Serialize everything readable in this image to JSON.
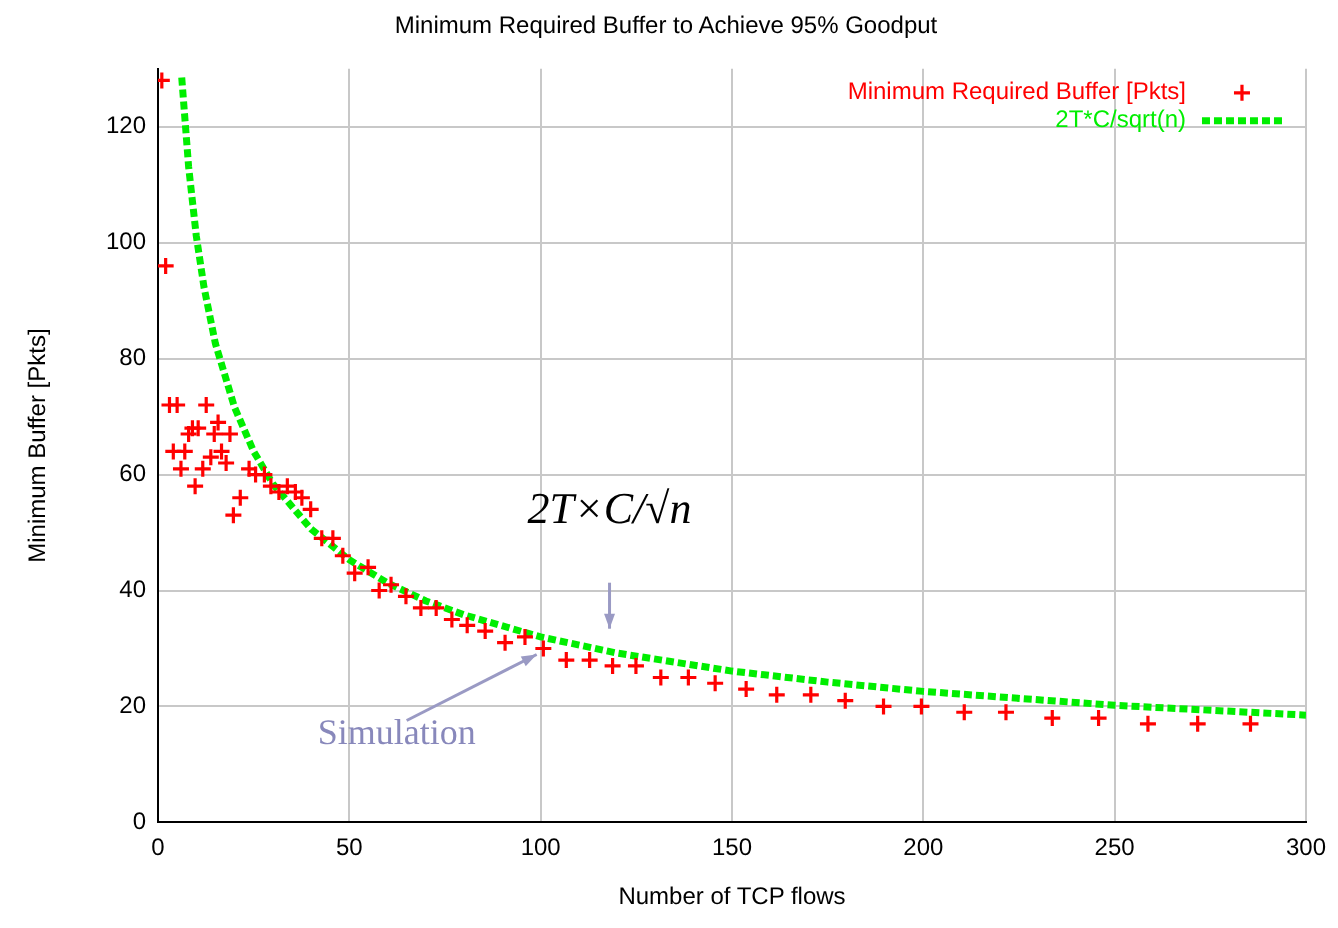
{
  "chart_data": {
    "type": "scatter",
    "title": "Minimum Required Buffer to Achieve 95% Goodput",
    "xlabel": "Number of TCP flows",
    "ylabel": "Minimum Buffer [Pkts]",
    "xlim": [
      0,
      300
    ],
    "xticks": [
      0,
      50,
      100,
      150,
      200,
      250,
      300
    ],
    "ylim": [
      0,
      130
    ],
    "yticks": [
      0,
      20,
      40,
      60,
      80,
      100,
      120
    ],
    "grid": true,
    "legend": "top right",
    "series": [
      {
        "name": "Minimum Required Buffer [Pkts]",
        "type": "scatter",
        "marker": "cross",
        "color": "#ff0000",
        "x": [
          1,
          2,
          3,
          4,
          5,
          6,
          7,
          8,
          9,
          9.7,
          10.5,
          11.7,
          12.6,
          13.8,
          14.7,
          15.7,
          16.6,
          17.8,
          18.8,
          19.7,
          21.5,
          23.8,
          25.5,
          27.8,
          29.5,
          31.6,
          33.8,
          35.9,
          37.6,
          39.9,
          42.8,
          45.7,
          48.3,
          51.4,
          54.9,
          57.8,
          60.9,
          64.8,
          68.7,
          72.7,
          76.8,
          80.8,
          85.5,
          90.7,
          95.9,
          100.7,
          106.7,
          112.8,
          118.8,
          124.9,
          131.4,
          138.6,
          145.6,
          153.7,
          161.7,
          170.6,
          179.6,
          189.6,
          199.5,
          210.7,
          221.6,
          233.7,
          245.8,
          258.7,
          271.7,
          285.5
        ],
        "values": [
          128,
          96,
          72,
          64,
          72,
          61,
          64,
          67,
          68,
          58,
          68,
          61,
          72,
          63,
          67,
          69,
          64,
          62,
          67,
          53,
          56,
          61,
          60,
          60,
          58,
          57,
          58,
          57,
          56,
          54,
          49,
          49,
          46,
          43,
          44,
          40,
          41,
          39,
          37,
          37,
          35,
          34,
          33,
          31,
          32,
          30,
          28,
          28,
          27,
          27,
          25,
          25,
          24,
          23,
          22,
          22,
          21,
          20,
          20,
          19,
          19,
          18,
          18,
          17,
          17,
          17
        ]
      },
      {
        "name": "2T*C/sqrt(n)",
        "type": "line",
        "marker": "none",
        "line_style": "dotted",
        "color": "#00ee00",
        "x": [
          6.2,
          8,
          10,
          12,
          15,
          20,
          25,
          30,
          40,
          50,
          60,
          70,
          80,
          100,
          120,
          150,
          175,
          200,
          250,
          300
        ],
        "values": [
          128.5,
          113.1,
          101.2,
          92.4,
          82.6,
          71.6,
          64.0,
          58.4,
          50.6,
          45.3,
          41.3,
          38.2,
          35.8,
          32.0,
          29.2,
          26.1,
          24.2,
          22.6,
          20.2,
          18.5
        ]
      }
    ],
    "annotations": [
      {
        "text": "Simulation",
        "x": 100,
        "y": 30
      },
      {
        "text": "2T×C/√n",
        "x": 118,
        "y": 31
      }
    ]
  }
}
